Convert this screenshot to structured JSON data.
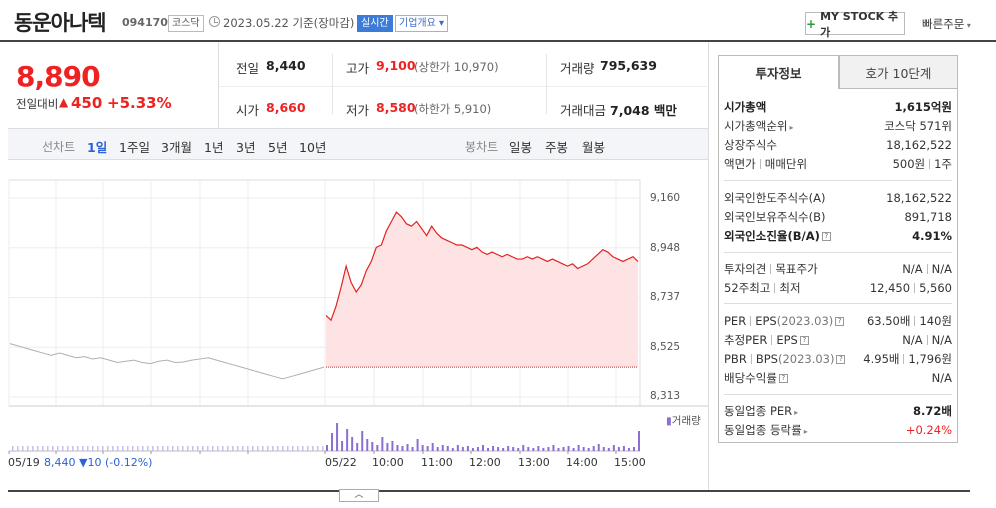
{
  "header": {
    "name": "동운아나텍",
    "code": "094170",
    "market": "코스닥",
    "date": "2023.05.22",
    "date_suffix": "기준(장마감)",
    "realtime": "실시간",
    "company": "기업개요",
    "mystock": "MY STOCK 추가",
    "quick_order": "빠른주문"
  },
  "price": {
    "current": "8,890",
    "change_label": "전일대비",
    "change": "450",
    "change_pct": "+5.33%"
  },
  "info": {
    "prev_label": "전일",
    "prev": "8,440",
    "high_label": "고가",
    "high": "9,100",
    "upper_limit": "(상한가 10,970)",
    "volume_label": "거래량",
    "volume": "795,639",
    "open_label": "시가",
    "open": "8,660",
    "low_label": "저가",
    "low": "8,580",
    "lower_limit": "(하한가 5,910)",
    "amount_label": "거래대금",
    "amount": "7,048",
    "amount_unit": "백만"
  },
  "periods": {
    "label": "선차트",
    "items": [
      "1일",
      "1주일",
      "3개월",
      "1년",
      "3년",
      "5년",
      "10년"
    ],
    "selected": "1일",
    "candle_label": "봉차트",
    "candle_items": [
      "일봉",
      "주봉",
      "월봉"
    ]
  },
  "chart_data": {
    "type": "line",
    "yticks": [
      "9,160",
      "8,948",
      "8,737",
      "8,525",
      "8,313"
    ],
    "ylim": [
      8313,
      9160
    ],
    "xticks": [
      "05/19",
      "05/22",
      "10:00",
      "11:00",
      "12:00",
      "13:00",
      "14:00",
      "15:00"
    ],
    "prev_close": 8440,
    "prev_day": [
      8540,
      8530,
      8520,
      8510,
      8500,
      8490,
      8500,
      8490,
      8480,
      8485,
      8475,
      8480,
      8470,
      8460,
      8465,
      8470,
      8460,
      8455,
      8465,
      8470,
      8460,
      8462,
      8470,
      8475,
      8480,
      8470,
      8460,
      8450,
      8440,
      8430,
      8420,
      8410,
      8400,
      8390,
      8400,
      8410,
      8420,
      8430,
      8440
    ],
    "today": [
      8660,
      8640,
      8700,
      8780,
      8870,
      8800,
      8760,
      8790,
      8850,
      8890,
      8950,
      8960,
      9020,
      9060,
      9100,
      9080,
      9050,
      9040,
      9060,
      9030,
      9000,
      9040,
      9010,
      8990,
      8980,
      8970,
      8960,
      8960,
      8950,
      8940,
      8950,
      8930,
      8920,
      8930,
      8920,
      8910,
      8920,
      8910,
      8900,
      8900,
      8910,
      8900,
      8910,
      8900,
      8890,
      8900,
      8890,
      8880,
      8870,
      8880,
      8860,
      8870,
      8880,
      8900,
      8920,
      8940,
      8930,
      8910,
      8900,
      8890,
      8900,
      8910,
      8890
    ],
    "volume_label": "거래량",
    "prev_info": {
      "date": "05/19",
      "close": "8,440",
      "change": "▼10",
      "pct": "(-0.12%)"
    },
    "up_color": "#e22222",
    "prev_color": "#b0b0b0"
  },
  "panel": {
    "tab_invest": "투자정보",
    "tab_quote": "호가 10단계",
    "rows": {
      "market_cap": {
        "label": "시가총액",
        "val": "1,615억원"
      },
      "cap_rank": {
        "label": "시가총액순위",
        "val": "코스닥 571위"
      },
      "shares": {
        "label": "상장주식수",
        "val": "18,162,522"
      },
      "face": {
        "label": "액면가",
        "label2": "매매단위",
        "val": "500원",
        "val2": "1주"
      },
      "foreign_limit": {
        "label": "외국인한도주식수(A)",
        "val": "18,162,522"
      },
      "foreign_hold": {
        "label": "외국인보유주식수(B)",
        "val": "891,718"
      },
      "foreign_rate": {
        "label": "외국인소진율(B/A)",
        "val": "4.91%"
      },
      "opinion": {
        "label": "투자의견",
        "label2": "목표주가",
        "val": "N/A",
        "val2": "N/A"
      },
      "week52": {
        "label": "52주최고",
        "label2": "최저",
        "val": "12,450",
        "val2": "5,560"
      },
      "per": {
        "label": "PER",
        "label2": "EPS",
        "year": "(2023.03)",
        "val": "63.50배",
        "val2": "140원"
      },
      "est_per": {
        "label": "추정PER",
        "label2": "EPS",
        "val": "N/A",
        "val2": "N/A"
      },
      "pbr": {
        "label": "PBR",
        "label2": "BPS",
        "year": "(2023.03)",
        "val": "4.95배",
        "val2": "1,796원"
      },
      "dividend": {
        "label": "배당수익률",
        "val": "N/A"
      },
      "ind_per": {
        "label": "동일업종 PER",
        "val": "8.72배"
      },
      "ind_rate": {
        "label": "동일업종 등락률",
        "val": "+0.24%"
      }
    }
  }
}
